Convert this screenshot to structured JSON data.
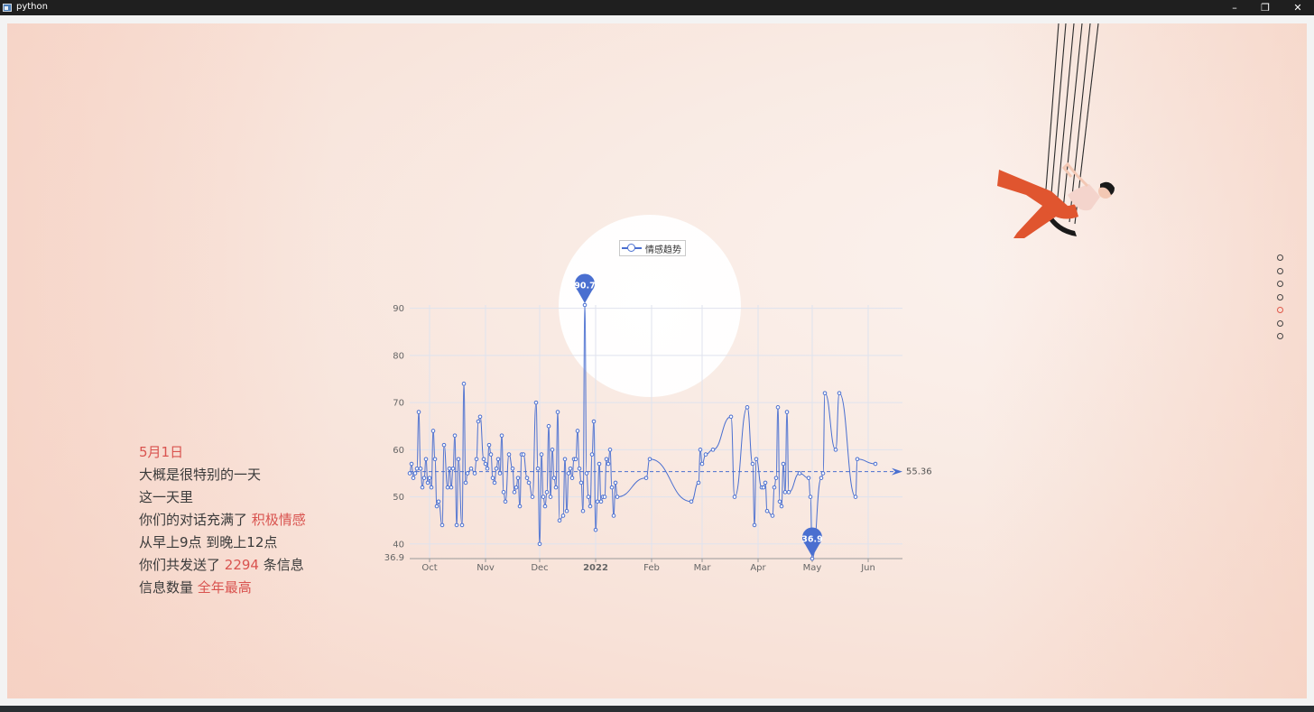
{
  "window": {
    "title": "python",
    "minimize": "–",
    "restore": "❐",
    "close": "✕"
  },
  "story": {
    "date": "5月1日",
    "line1": "大概是很特别的一天",
    "line2": "这一天里",
    "line3_prefix": "你们的对话充满了",
    "line3_highlight": "积极情感",
    "line4": "从早上9点 到晚上12点",
    "line5_prefix": "你们共发送了",
    "line5_count": "2294",
    "line5_suffix": "条信息",
    "line6_prefix": "信息数量",
    "line6_highlight": "全年最高"
  },
  "nav_dots": {
    "count": 7,
    "active_index": 4
  },
  "illustration": {
    "name": "swing-person-illustration",
    "pants_color": "#e0552f"
  },
  "colors": {
    "series": "#4a6fd0",
    "accent": "#d9534f",
    "grid": "#dfe3ee"
  },
  "chart_data": {
    "type": "line",
    "series": [
      {
        "name": "情感趋势"
      }
    ],
    "ylim": [
      36.9,
      90.7
    ],
    "y_ticks": [
      90,
      80,
      70,
      60,
      50,
      40
    ],
    "y_min_label": "36.9",
    "x_range": [
      "2021-09-20",
      "2022-06-20"
    ],
    "x_ticks": [
      {
        "date": "2021-10-01",
        "label": "Oct",
        "bold": false
      },
      {
        "date": "2021-11-01",
        "label": "Nov",
        "bold": false
      },
      {
        "date": "2021-12-01",
        "label": "Dec",
        "bold": false
      },
      {
        "date": "2022-01-01",
        "label": "2022",
        "bold": true
      },
      {
        "date": "2022-02-01",
        "label": "Feb",
        "bold": false
      },
      {
        "date": "2022-03-01",
        "label": "Mar",
        "bold": false
      },
      {
        "date": "2022-04-01",
        "label": "Apr",
        "bold": false
      },
      {
        "date": "2022-05-01",
        "label": "May",
        "bold": false
      },
      {
        "date": "2022-06-01",
        "label": "Jun",
        "bold": false
      }
    ],
    "points": [
      [
        "2021-09-20",
        55
      ],
      [
        "2021-09-21",
        57
      ],
      [
        "2021-09-22",
        54
      ],
      [
        "2021-09-23",
        55
      ],
      [
        "2021-09-24",
        56
      ],
      [
        "2021-09-25",
        68
      ],
      [
        "2021-09-26",
        56
      ],
      [
        "2021-09-27",
        52
      ],
      [
        "2021-09-28",
        54
      ],
      [
        "2021-09-29",
        58
      ],
      [
        "2021-09-30",
        53
      ],
      [
        "2021-10-01",
        54
      ],
      [
        "2021-10-02",
        52
      ],
      [
        "2021-10-03",
        64
      ],
      [
        "2021-10-04",
        58
      ],
      [
        "2021-10-05",
        48
      ],
      [
        "2021-10-06",
        49
      ],
      [
        "2021-10-08",
        44
      ],
      [
        "2021-10-09",
        61
      ],
      [
        "2021-10-11",
        52
      ],
      [
        "2021-10-12",
        56
      ],
      [
        "2021-10-13",
        52
      ],
      [
        "2021-10-14",
        56
      ],
      [
        "2021-10-15",
        63
      ],
      [
        "2021-10-16",
        44
      ],
      [
        "2021-10-17",
        58
      ],
      [
        "2021-10-19",
        44
      ],
      [
        "2021-10-20",
        74
      ],
      [
        "2021-10-21",
        53
      ],
      [
        "2021-10-22",
        55
      ],
      [
        "2021-10-24",
        56
      ],
      [
        "2021-10-26",
        55
      ],
      [
        "2021-10-27",
        58
      ],
      [
        "2021-10-28",
        66
      ],
      [
        "2021-10-29",
        67
      ],
      [
        "2021-10-31",
        58
      ],
      [
        "2021-11-01",
        57
      ],
      [
        "2021-11-02",
        56
      ],
      [
        "2021-11-03",
        61
      ],
      [
        "2021-11-04",
        59
      ],
      [
        "2021-11-05",
        54
      ],
      [
        "2021-11-06",
        53
      ],
      [
        "2021-11-07",
        56
      ],
      [
        "2021-11-08",
        58
      ],
      [
        "2021-11-09",
        55
      ],
      [
        "2021-11-10",
        63
      ],
      [
        "2021-11-11",
        51
      ],
      [
        "2021-11-12",
        49
      ],
      [
        "2021-11-14",
        59
      ],
      [
        "2021-11-16",
        56
      ],
      [
        "2021-11-17",
        51
      ],
      [
        "2021-11-18",
        52
      ],
      [
        "2021-11-19",
        54
      ],
      [
        "2021-11-20",
        48
      ],
      [
        "2021-11-21",
        59
      ],
      [
        "2021-11-22",
        59
      ],
      [
        "2021-11-24",
        54
      ],
      [
        "2021-11-25",
        53
      ],
      [
        "2021-11-27",
        50
      ],
      [
        "2021-11-29",
        70
      ],
      [
        "2021-11-30",
        56
      ],
      [
        "2021-12-01",
        40
      ],
      [
        "2021-12-02",
        59
      ],
      [
        "2021-12-03",
        50
      ],
      [
        "2021-12-04",
        48
      ],
      [
        "2021-12-05",
        51
      ],
      [
        "2021-12-06",
        65
      ],
      [
        "2021-12-07",
        50
      ],
      [
        "2021-12-08",
        60
      ],
      [
        "2021-12-09",
        54
      ],
      [
        "2021-12-10",
        52
      ],
      [
        "2021-12-11",
        68
      ],
      [
        "2021-12-12",
        45
      ],
      [
        "2021-12-14",
        46
      ],
      [
        "2021-12-15",
        58
      ],
      [
        "2021-12-16",
        47
      ],
      [
        "2021-12-17",
        55
      ],
      [
        "2021-12-18",
        56
      ],
      [
        "2021-12-19",
        54
      ],
      [
        "2021-12-20",
        58
      ],
      [
        "2021-12-21",
        58
      ],
      [
        "2021-12-22",
        64
      ],
      [
        "2021-12-23",
        56
      ],
      [
        "2021-12-24",
        53
      ],
      [
        "2021-12-25",
        47
      ],
      [
        "2021-12-26",
        90.7
      ],
      [
        "2021-12-27",
        55
      ],
      [
        "2021-12-28",
        50
      ],
      [
        "2021-12-29",
        48
      ],
      [
        "2021-12-30",
        59
      ],
      [
        "2021-12-31",
        66
      ],
      [
        "2022-01-01",
        43
      ],
      [
        "2022-01-02",
        49
      ],
      [
        "2022-01-03",
        57
      ],
      [
        "2022-01-04",
        49
      ],
      [
        "2022-01-05",
        50
      ],
      [
        "2022-01-06",
        50
      ],
      [
        "2022-01-07",
        58
      ],
      [
        "2022-01-08",
        57
      ],
      [
        "2022-01-09",
        60
      ],
      [
        "2022-01-10",
        52
      ],
      [
        "2022-01-11",
        46
      ],
      [
        "2022-01-12",
        53
      ],
      [
        "2022-01-13",
        50
      ],
      [
        "2022-01-29",
        54
      ],
      [
        "2022-01-31",
        58
      ],
      [
        "2022-02-23",
        49
      ],
      [
        "2022-02-27",
        53
      ],
      [
        "2022-02-28",
        60
      ],
      [
        "2022-03-01",
        57
      ],
      [
        "2022-03-03",
        59
      ],
      [
        "2022-03-07",
        60
      ],
      [
        "2022-03-17",
        67
      ],
      [
        "2022-03-19",
        50
      ],
      [
        "2022-03-26",
        69
      ],
      [
        "2022-03-29",
        57
      ],
      [
        "2022-03-30",
        44
      ],
      [
        "2022-03-31",
        58
      ],
      [
        "2022-04-03",
        52
      ],
      [
        "2022-04-04",
        52
      ],
      [
        "2022-04-05",
        53
      ],
      [
        "2022-04-06",
        47
      ],
      [
        "2022-04-09",
        46
      ],
      [
        "2022-04-10",
        52
      ],
      [
        "2022-04-11",
        54
      ],
      [
        "2022-04-12",
        69
      ],
      [
        "2022-04-13",
        49
      ],
      [
        "2022-04-14",
        48
      ],
      [
        "2022-04-15",
        57
      ],
      [
        "2022-04-16",
        51
      ],
      [
        "2022-04-17",
        68
      ],
      [
        "2022-04-18",
        51
      ],
      [
        "2022-04-24",
        55
      ],
      [
        "2022-04-29",
        54
      ],
      [
        "2022-04-30",
        50
      ],
      [
        "2022-05-01",
        36.9
      ],
      [
        "2022-05-06",
        54
      ],
      [
        "2022-05-07",
        55
      ],
      [
        "2022-05-08",
        72
      ],
      [
        "2022-05-14",
        60
      ],
      [
        "2022-05-16",
        72
      ],
      [
        "2022-05-25",
        50
      ],
      [
        "2022-05-26",
        58
      ],
      [
        "2022-06-05",
        57
      ]
    ],
    "max_point": {
      "date": "2021-12-26",
      "value": 90.7,
      "label": "90.7"
    },
    "min_point": {
      "date": "2022-05-01",
      "value": 36.9,
      "label": "36.9"
    },
    "average_line": {
      "value": 55.36,
      "label": "55.36"
    },
    "grid": true,
    "legend_position": "top-center"
  }
}
